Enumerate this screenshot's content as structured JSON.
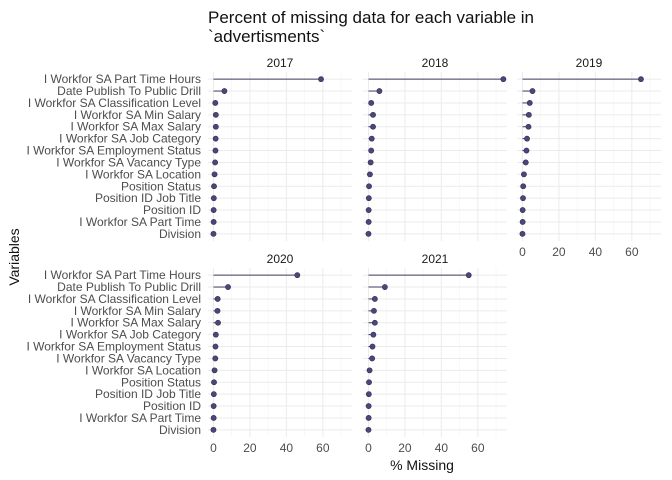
{
  "chart_data": {
    "type": "lollipop",
    "title": "Percent of missing data for each variable in `advertisments`",
    "title_lines": [
      "Percent of missing data for each variable in",
      "`advertisments`"
    ],
    "xlabel": "% Missing",
    "ylabel": "Variables",
    "xlim": [
      -3,
      76
    ],
    "xticks": [
      0,
      20,
      40,
      60
    ],
    "grid": true,
    "facet_by": "year",
    "variables": [
      "I Workfor SA Part Time Hours",
      "Date Publish To Public Drill",
      "I Workfor SA Classification Level",
      "I Workfor SA Min Salary",
      "I Workfor SA Max Salary",
      "I Workfor SA Job Category",
      "I Workfor SA Employment Status",
      "I Workfor SA Vacancy Type",
      "I Workfor SA Location",
      "Position Status",
      "Position ID Job Title",
      "Position ID",
      "I Workfor SA Part Time",
      "Division"
    ],
    "series": [
      {
        "name": "2017",
        "values": [
          59,
          6,
          1,
          1.3,
          1.3,
          1.2,
          1.1,
          0.9,
          0.6,
          0.3,
          0.2,
          0.1,
          0.1,
          0
        ]
      },
      {
        "name": "2018",
        "values": [
          74,
          6,
          1.5,
          2.5,
          2.5,
          1.8,
          1.5,
          1.2,
          0.8,
          0.3,
          0.2,
          0.1,
          0.1,
          0
        ]
      },
      {
        "name": "2019",
        "values": [
          65,
          5.5,
          4,
          3.5,
          3.3,
          2.5,
          2.2,
          1.8,
          0.8,
          0.4,
          0.3,
          0.1,
          0.1,
          0
        ]
      },
      {
        "name": "2020",
        "values": [
          46,
          8,
          2.3,
          2.2,
          2.5,
          1.3,
          1.1,
          1.0,
          0.6,
          0.3,
          0.2,
          0.1,
          0.1,
          0
        ]
      },
      {
        "name": "2021",
        "values": [
          55,
          9,
          3.5,
          3.0,
          3.5,
          2.7,
          2.2,
          2.0,
          0.6,
          0.3,
          0.2,
          0.1,
          0.1,
          0
        ]
      }
    ]
  }
}
